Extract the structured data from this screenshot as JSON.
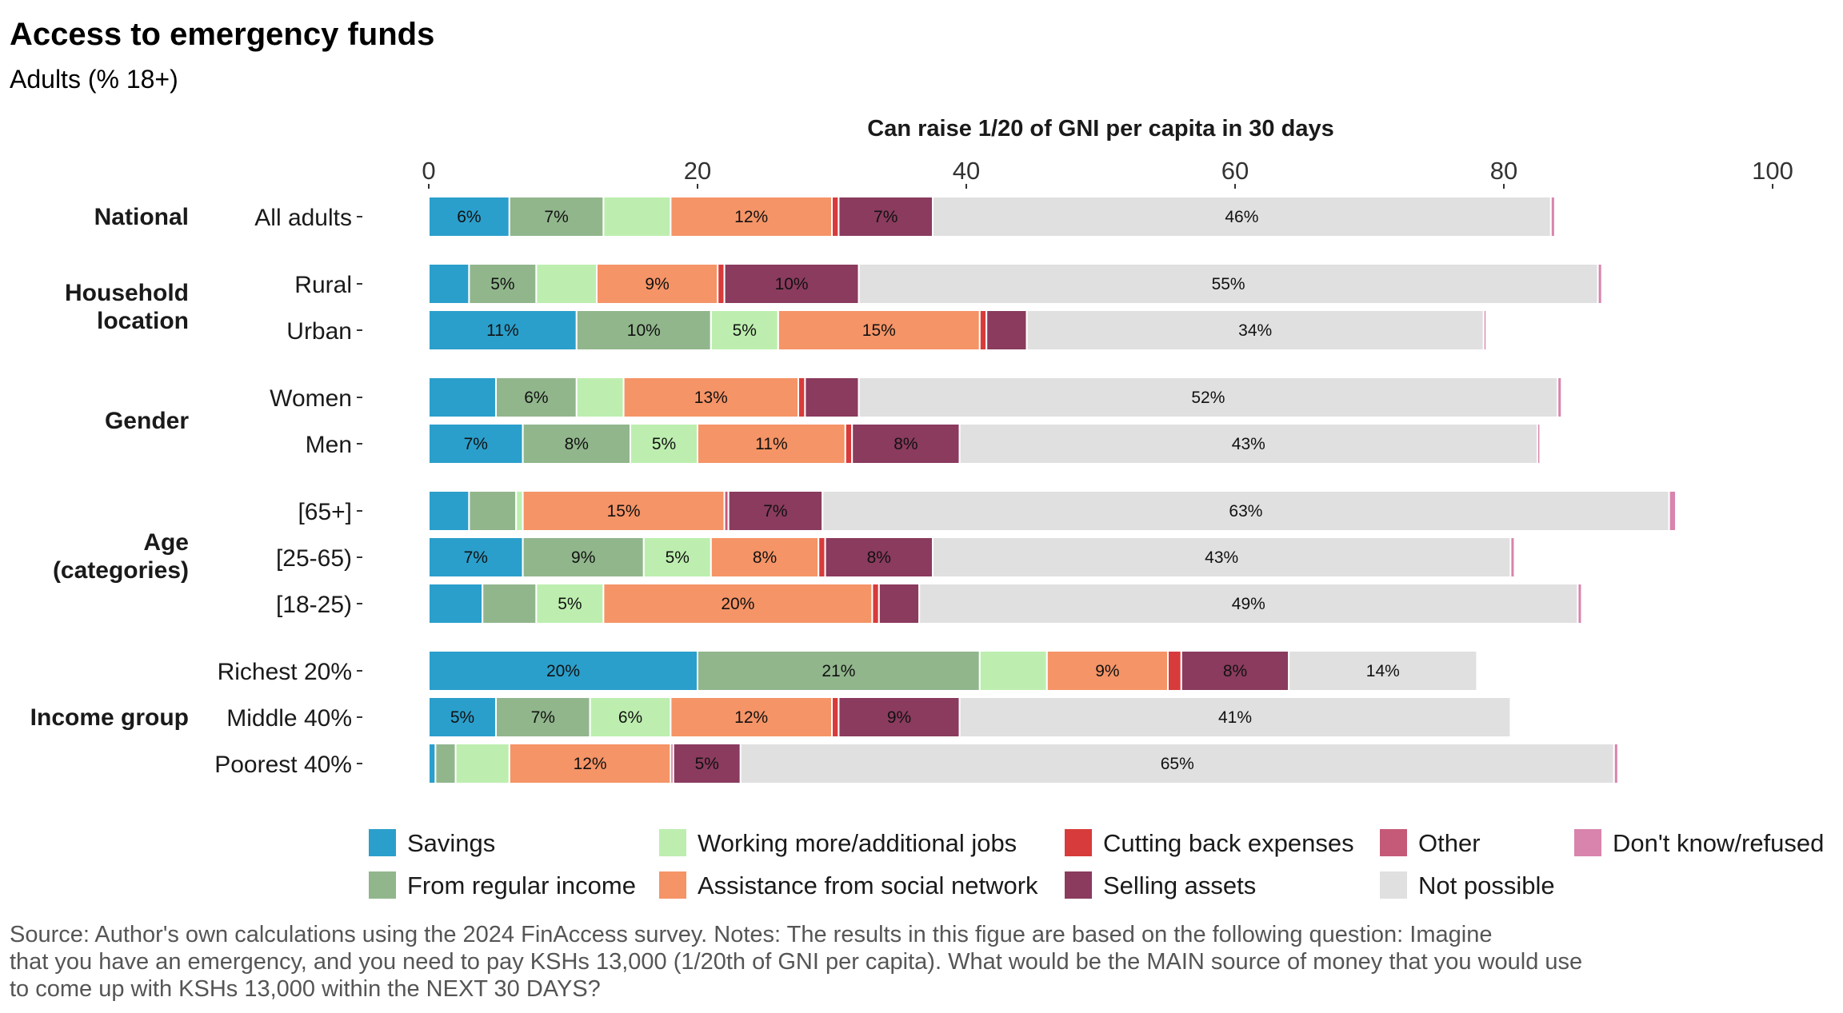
{
  "chart_data": {
    "type": "bar",
    "orientation": "horizontal",
    "stacked": true,
    "title": "Access to emergency funds",
    "subtitle": "Adults (% 18+)",
    "xlabel": "Can raise 1/20 of GNI per capita in 30 days",
    "xlim": [
      0,
      100
    ],
    "x_ticks": [
      "0",
      "20",
      "40",
      "60",
      "80",
      "100"
    ],
    "grid": false,
    "legend_position": "bottom",
    "groups": [
      {
        "label": "National",
        "rows": [
          "All adults"
        ]
      },
      {
        "label": "Household location",
        "rows": [
          "Rural",
          "Urban"
        ]
      },
      {
        "label": "Gender",
        "rows": [
          "Women",
          "Men"
        ]
      },
      {
        "label": "Age (categories)",
        "rows": [
          "[65+]",
          "[25-65)",
          "[18-25)"
        ]
      },
      {
        "label": "Income group",
        "rows": [
          "Richest 20%",
          "Middle 40%",
          "Poorest 40%"
        ]
      }
    ],
    "categories": [
      "All adults",
      "Rural",
      "Urban",
      "Women",
      "Men",
      "[65+]",
      "[25-65)",
      "[18-25)",
      "Richest 20%",
      "Middle 40%",
      "Poorest 40%"
    ],
    "series": [
      {
        "name": "Savings",
        "color": "#2b9fcb",
        "values": [
          6,
          3,
          11,
          5,
          7,
          3,
          7,
          4,
          20,
          5,
          0.5
        ]
      },
      {
        "name": "From regular income",
        "color": "#91b68c",
        "values": [
          7,
          5,
          10,
          6,
          8,
          3.5,
          9,
          4,
          21,
          7,
          1.5
        ]
      },
      {
        "name": "Working more/additional jobs",
        "color": "#bdeeaf",
        "values": [
          5,
          4.5,
          5,
          3.5,
          5,
          0.5,
          5,
          5,
          5,
          6,
          4
        ]
      },
      {
        "name": "Assistance from social network",
        "color": "#f59467",
        "values": [
          12,
          9,
          15,
          13,
          11,
          15,
          8,
          20,
          9,
          12,
          12
        ]
      },
      {
        "name": "Cutting back expenses",
        "color": "#d83b3b",
        "values": [
          0.5,
          0.5,
          0.5,
          0.5,
          0.5,
          0,
          0.5,
          0.5,
          1,
          0.5,
          0
        ]
      },
      {
        "name": "Other",
        "color": "#c55a78",
        "values": [
          0,
          0,
          0,
          0,
          0,
          0.3,
          0,
          0,
          0,
          0,
          0.2
        ]
      },
      {
        "name": "Selling assets",
        "color": "#8a3b5e",
        "values": [
          7,
          10,
          3,
          4,
          8,
          7,
          8,
          3,
          8,
          9,
          5
        ]
      },
      {
        "name": "Not possible",
        "color": "#e0e0e0",
        "values": [
          46,
          55,
          34,
          52,
          43,
          63,
          43,
          49,
          14,
          41,
          65
        ]
      },
      {
        "name": "Don't know/refused",
        "color": "#d884ad",
        "values": [
          0.3,
          0.3,
          0.2,
          0.3,
          0.2,
          0.5,
          0.3,
          0.3,
          0,
          0,
          0.3
        ]
      }
    ],
    "data_labels": [
      [
        "6%",
        "7%",
        "",
        "12%",
        "",
        "",
        "7%",
        "46%",
        ""
      ],
      [
        "",
        "5%",
        "",
        "9%",
        "",
        "",
        "10%",
        "55%",
        ""
      ],
      [
        "11%",
        "10%",
        "5%",
        "15%",
        "",
        "",
        "",
        "34%",
        ""
      ],
      [
        "",
        "6%",
        "",
        "13%",
        "",
        "",
        "",
        "52%",
        ""
      ],
      [
        "7%",
        "8%",
        "5%",
        "11%",
        "",
        "",
        "8%",
        "43%",
        ""
      ],
      [
        "",
        "",
        "",
        "15%",
        "",
        "",
        "7%",
        "63%",
        ""
      ],
      [
        "7%",
        "9%",
        "5%",
        "8%",
        "",
        "",
        "8%",
        "43%",
        ""
      ],
      [
        "",
        "",
        "5%",
        "20%",
        "",
        "",
        "",
        "49%",
        ""
      ],
      [
        "20%",
        "21%",
        "",
        "9%",
        "",
        "",
        "8%",
        "14%",
        ""
      ],
      [
        "5%",
        "7%",
        "6%",
        "12%",
        "",
        "",
        "9%",
        "41%",
        ""
      ],
      [
        "",
        "",
        "",
        "12%",
        "",
        "",
        "5%",
        "65%",
        ""
      ]
    ],
    "legend_order": [
      "Savings",
      "From regular income",
      "Working more/additional jobs",
      "Assistance from social network",
      "Cutting back expenses",
      "Selling assets",
      "Other",
      "Not possible",
      "Don't know/refused"
    ],
    "caption": [
      "Source: Author's own calculations using the 2024 FinAccess survey. Notes: The results in this figue are based on the following question: Imagine",
      "that you have an emergency, and you need to pay KSHs 13,000 (1/20th of GNI per capita). What would be the MAIN source of money that you would use",
      "to come up with KSHs 13,000 within the NEXT 30 DAYS?"
    ]
  }
}
